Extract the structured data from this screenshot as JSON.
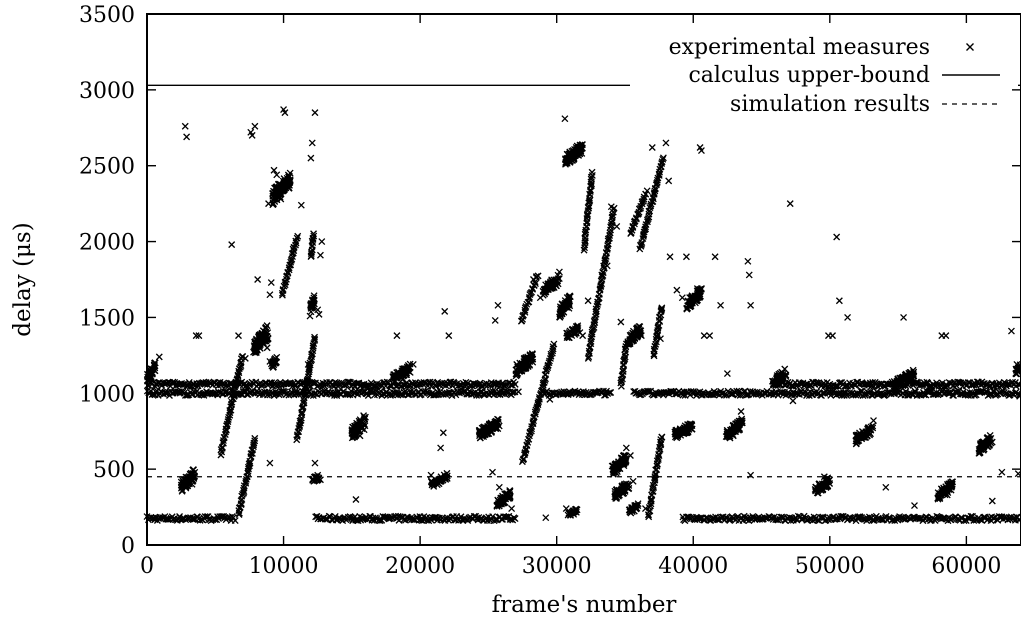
{
  "chart_data": {
    "type": "scatter",
    "xlabel": "frame's number",
    "ylabel": "delay (μs)",
    "xlim": [
      0,
      64000
    ],
    "ylim": [
      0,
      3500
    ],
    "x_ticks": [
      "0",
      "10000",
      "20000",
      "30000",
      "40000",
      "50000",
      "60000"
    ],
    "y_ticks": [
      "0",
      "500",
      "1000",
      "1500",
      "2000",
      "2500",
      "3000",
      "3500"
    ],
    "grid": false,
    "legend_position": "top-right",
    "series": [
      {
        "name": "experimental measures",
        "marker": "x",
        "points": [
          [
            200,
            1150
          ],
          [
            300,
            1100
          ],
          [
            600,
            1200
          ],
          [
            900,
            1240
          ],
          [
            2800,
            2760
          ],
          [
            2900,
            2690
          ],
          [
            3000,
            430
          ],
          [
            3300,
            400
          ],
          [
            3600,
            1380
          ],
          [
            3800,
            1380
          ],
          [
            6200,
            1980
          ],
          [
            6700,
            1380
          ],
          [
            7200,
            1230
          ],
          [
            7600,
            2720
          ],
          [
            7900,
            2760
          ],
          [
            7700,
            2700
          ],
          [
            8100,
            1750
          ],
          [
            8500,
            1370
          ],
          [
            8800,
            1300
          ],
          [
            9000,
            1210
          ],
          [
            9200,
            1180
          ],
          [
            8900,
            2250
          ],
          [
            9300,
            2470
          ],
          [
            9500,
            2440
          ],
          [
            9700,
            2320
          ],
          [
            9800,
            2280
          ],
          [
            10000,
            2870
          ],
          [
            10100,
            2850
          ],
          [
            9100,
            1730
          ],
          [
            9000,
            1650
          ],
          [
            9400,
            1060
          ],
          [
            9400,
            1010
          ],
          [
            9000,
            540
          ],
          [
            10700,
            1950
          ],
          [
            11300,
            2240
          ],
          [
            11800,
            1190
          ],
          [
            12000,
            2550
          ],
          [
            12100,
            2650
          ],
          [
            12300,
            2850
          ],
          [
            12500,
            1550
          ],
          [
            12600,
            1520
          ],
          [
            12700,
            1910
          ],
          [
            12800,
            2000
          ],
          [
            12500,
            460
          ],
          [
            12700,
            430
          ],
          [
            12300,
            540
          ],
          [
            15400,
            780
          ],
          [
            15600,
            720
          ],
          [
            15900,
            760
          ],
          [
            15300,
            300
          ],
          [
            18300,
            1380
          ],
          [
            18700,
            1090
          ],
          [
            19100,
            1150
          ],
          [
            19500,
            1190
          ],
          [
            20800,
            460
          ],
          [
            21200,
            420
          ],
          [
            21500,
            640
          ],
          [
            21700,
            740
          ],
          [
            21800,
            1540
          ],
          [
            22100,
            1380
          ],
          [
            24900,
            740
          ],
          [
            25200,
            800
          ],
          [
            25500,
            1480
          ],
          [
            25700,
            1580
          ],
          [
            25300,
            480
          ],
          [
            25800,
            380
          ],
          [
            26400,
            320
          ],
          [
            26700,
            240
          ],
          [
            27200,
            1010
          ],
          [
            27500,
            1160
          ],
          [
            27800,
            1210
          ],
          [
            28300,
            1750
          ],
          [
            28800,
            1630
          ],
          [
            29500,
            960
          ],
          [
            29900,
            1720
          ],
          [
            30200,
            1800
          ],
          [
            30600,
            2810
          ],
          [
            30900,
            1560
          ],
          [
            31200,
            2600
          ],
          [
            31500,
            2630
          ],
          [
            31700,
            1400
          ],
          [
            31900,
            1380
          ],
          [
            30700,
            240
          ],
          [
            31000,
            200
          ],
          [
            29200,
            180
          ],
          [
            32300,
            1610
          ],
          [
            33300,
            1780
          ],
          [
            33700,
            1840
          ],
          [
            34000,
            2230
          ],
          [
            34400,
            2100
          ],
          [
            34700,
            1470
          ],
          [
            35100,
            640
          ],
          [
            35400,
            590
          ],
          [
            35600,
            420
          ],
          [
            35900,
            1430
          ],
          [
            36200,
            1380
          ],
          [
            36500,
            240
          ],
          [
            37000,
            2620
          ],
          [
            37500,
            1480
          ],
          [
            37600,
            1360
          ],
          [
            38000,
            2650
          ],
          [
            38200,
            2400
          ],
          [
            38300,
            1900
          ],
          [
            38800,
            1680
          ],
          [
            39200,
            1630
          ],
          [
            39500,
            1900
          ],
          [
            39900,
            1600
          ],
          [
            40300,
            1690
          ],
          [
            40500,
            2620
          ],
          [
            40600,
            2600
          ],
          [
            40800,
            1380
          ],
          [
            41200,
            1380
          ],
          [
            41600,
            1900
          ],
          [
            42000,
            1580
          ],
          [
            42500,
            1130
          ],
          [
            42900,
            750
          ],
          [
            43300,
            790
          ],
          [
            43500,
            880
          ],
          [
            44000,
            1870
          ],
          [
            44100,
            1780
          ],
          [
            44200,
            1580
          ],
          [
            44200,
            460
          ],
          [
            45800,
            1080
          ],
          [
            46300,
            1110
          ],
          [
            46700,
            1160
          ],
          [
            47100,
            2250
          ],
          [
            47300,
            950
          ],
          [
            49300,
            380
          ],
          [
            49600,
            450
          ],
          [
            49900,
            1380
          ],
          [
            50200,
            1380
          ],
          [
            50500,
            2030
          ],
          [
            50700,
            1610
          ],
          [
            51300,
            1500
          ],
          [
            52400,
            720
          ],
          [
            52800,
            770
          ],
          [
            53200,
            820
          ],
          [
            54100,
            380
          ],
          [
            55200,
            1040
          ],
          [
            55500,
            1090
          ],
          [
            55800,
            1130
          ],
          [
            55400,
            1500
          ],
          [
            56200,
            260
          ],
          [
            58200,
            1380
          ],
          [
            58500,
            1380
          ],
          [
            58600,
            330
          ],
          [
            58900,
            380
          ],
          [
            61300,
            650
          ],
          [
            61600,
            700
          ],
          [
            61900,
            290
          ],
          [
            62600,
            480
          ],
          [
            63300,
            1410
          ],
          [
            63700,
            1190
          ],
          [
            63900,
            980
          ],
          [
            63800,
            470
          ]
        ],
        "bands": [
          {
            "x": [
              0,
              6500
            ],
            "y": 175
          },
          {
            "x": [
              12300,
              27000
            ],
            "y": 175
          },
          {
            "x": [
              39200,
              64000
            ],
            "y": 175
          },
          {
            "x": [
              0,
              27000
            ],
            "y": 1000
          },
          {
            "x": [
              0,
              27000
            ],
            "y": 1060
          },
          {
            "x": [
              29000,
              34000
            ],
            "y": 1000
          },
          {
            "x": [
              35600,
              64000
            ],
            "y": 1000
          },
          {
            "x": [
              46000,
              64000
            ],
            "y": 1060
          }
        ],
        "clusters": [
          {
            "x": [
              0,
              600
            ],
            "y": [
              1070,
              1200
            ]
          },
          {
            "x": [
              2500,
              3500
            ],
            "y": [
              350,
              500
            ]
          },
          {
            "x": [
              7800,
              8900
            ],
            "y": [
              1250,
              1450
            ]
          },
          {
            "x": [
              9100,
              9500
            ],
            "y": [
              1150,
              1250
            ]
          },
          {
            "x": [
              9200,
              10500
            ],
            "y": [
              2250,
              2450
            ]
          },
          {
            "x": [
              11900,
              12300
            ],
            "y": [
              1500,
              1650
            ]
          },
          {
            "x": [
              12100,
              12700
            ],
            "y": [
              400,
              480
            ]
          },
          {
            "x": [
              15000,
              16000
            ],
            "y": [
              700,
              860
            ]
          },
          {
            "x": [
              18000,
              19300
            ],
            "y": [
              1070,
              1190
            ]
          },
          {
            "x": [
              20800,
              22000
            ],
            "y": [
              380,
              470
            ]
          },
          {
            "x": [
              24300,
              25800
            ],
            "y": [
              700,
              830
            ]
          },
          {
            "x": [
              25600,
              26600
            ],
            "y": [
              240,
              360
            ]
          },
          {
            "x": [
              27000,
              28300
            ],
            "y": [
              1120,
              1270
            ]
          },
          {
            "x": [
              29000,
              30200
            ],
            "y": [
              1650,
              1780
            ]
          },
          {
            "x": [
              30200,
              31000
            ],
            "y": [
              1500,
              1650
            ]
          },
          {
            "x": [
              30600,
              31900
            ],
            "y": [
              2500,
              2650
            ]
          },
          {
            "x": [
              30700,
              31600
            ],
            "y": [
              1350,
              1450
            ]
          },
          {
            "x": [
              30800,
              31500
            ],
            "y": [
              180,
              240
            ]
          },
          {
            "x": [
              34000,
              35100
            ],
            "y": [
              450,
              600
            ]
          },
          {
            "x": [
              34200,
              35300
            ],
            "y": [
              300,
              420
            ]
          },
          {
            "x": [
              35200,
              36200
            ],
            "y": [
              1320,
              1450
            ]
          },
          {
            "x": [
              35300,
              36000
            ],
            "y": [
              200,
              280
            ]
          },
          {
            "x": [
              38600,
              40000
            ],
            "y": [
              700,
              810
            ]
          },
          {
            "x": [
              39500,
              40600
            ],
            "y": [
              1550,
              1700
            ]
          },
          {
            "x": [
              42400,
              43600
            ],
            "y": [
              690,
              830
            ]
          },
          {
            "x": [
              45800,
              46800
            ],
            "y": [
              1040,
              1160
            ]
          },
          {
            "x": [
              48900,
              50000
            ],
            "y": [
              330,
              450
            ]
          },
          {
            "x": [
              51900,
              53200
            ],
            "y": [
              670,
              790
            ]
          },
          {
            "x": [
              54700,
              56200
            ],
            "y": [
              1020,
              1160
            ]
          },
          {
            "x": [
              57900,
              59000
            ],
            "y": [
              300,
              420
            ]
          },
          {
            "x": [
              60900,
              61900
            ],
            "y": [
              600,
              730
            ]
          },
          {
            "x": [
              63600,
              64000
            ],
            "y": [
              1120,
              1200
            ]
          }
        ],
        "segments": [
          [
            [
              5400,
              600
            ],
            [
              7000,
              1250
            ]
          ],
          [
            [
              6700,
              200
            ],
            [
              7900,
              700
            ]
          ],
          [
            [
              9900,
              1650
            ],
            [
              11000,
              2030
            ]
          ],
          [
            [
              11000,
              700
            ],
            [
              12300,
              1370
            ]
          ],
          [
            [
              12000,
              1900
            ],
            [
              12200,
              2050
            ]
          ],
          [
            [
              27400,
              1470
            ],
            [
              28600,
              1780
            ]
          ],
          [
            [
              27500,
              550
            ],
            [
              29800,
              1320
            ]
          ],
          [
            [
              32000,
              1950
            ],
            [
              32600,
              2450
            ]
          ],
          [
            [
              32300,
              1230
            ],
            [
              34200,
              2220
            ]
          ],
          [
            [
              34700,
              1050
            ],
            [
              35100,
              1320
            ]
          ],
          [
            [
              35400,
              2050
            ],
            [
              36600,
              2330
            ]
          ],
          [
            [
              36100,
              1950
            ],
            [
              37800,
              2550
            ]
          ],
          [
            [
              37100,
              1250
            ],
            [
              37700,
              1570
            ]
          ],
          [
            [
              36700,
              180
            ],
            [
              37700,
              720
            ]
          ]
        ]
      },
      {
        "name": "calculus upper-bound",
        "line_style": "solid",
        "y": 3030
      },
      {
        "name": "simulation results",
        "line_style": "dashed",
        "y": 450
      }
    ]
  }
}
